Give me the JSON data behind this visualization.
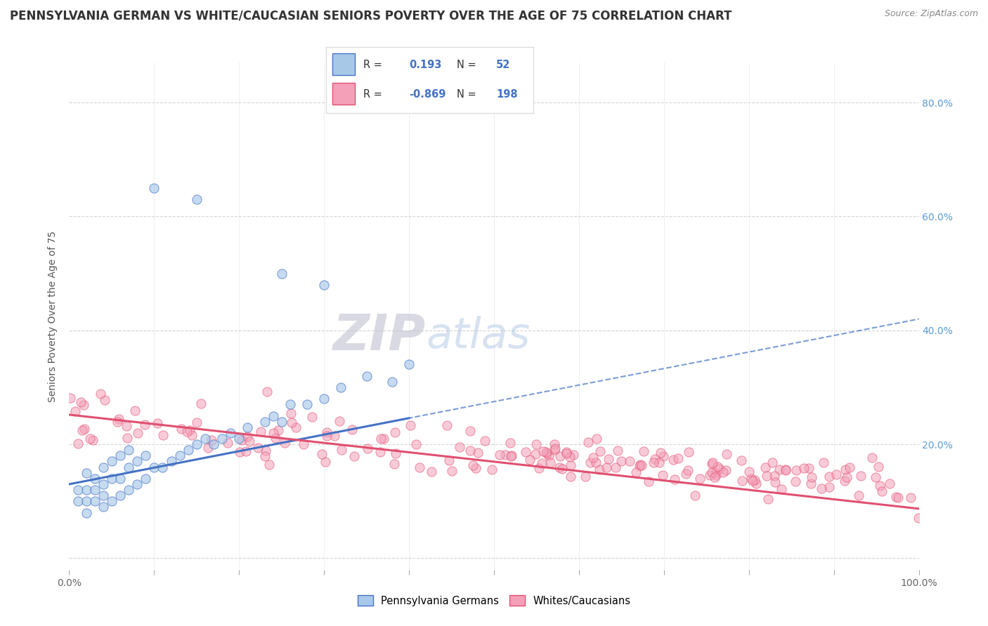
{
  "title": "PENNSYLVANIA GERMAN VS WHITE/CAUCASIAN SENIORS POVERTY OVER THE AGE OF 75 CORRELATION CHART",
  "source": "Source: ZipAtlas.com",
  "ylabel": "Seniors Poverty Over the Age of 75",
  "xlim": [
    0,
    1.0
  ],
  "ylim": [
    -0.02,
    0.87
  ],
  "blue_color": "#A8C8E8",
  "pink_color": "#F4A0B8",
  "blue_line_color": "#4472C4",
  "pink_line_color": "#E05070",
  "R_blue": 0.193,
  "N_blue": 52,
  "R_pink": -0.869,
  "N_pink": 198,
  "grid_color": "#C8C8C8",
  "background_color": "#FFFFFF",
  "title_fontsize": 12,
  "axis_label_fontsize": 10,
  "tick_fontsize": 10,
  "watermark_fontsize": 52
}
